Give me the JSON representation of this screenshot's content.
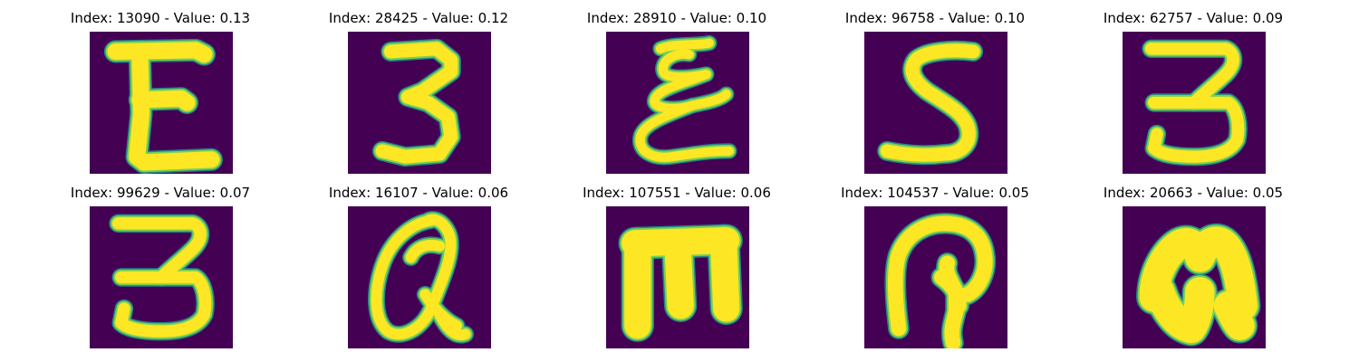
{
  "chart_data": {
    "type": "image-grid",
    "colormap": "viridis",
    "rows": 2,
    "cols": 5,
    "images": [
      {
        "title": "Index: 13090 - Value: 0.13",
        "index": 13090,
        "value": 0.13,
        "glyph": "E"
      },
      {
        "title": "Index: 28425 - Value: 0.12",
        "index": 28425,
        "value": 0.12,
        "glyph": "3"
      },
      {
        "title": "Index: 28910 - Value: 0.10",
        "index": 28910,
        "value": 0.1,
        "glyph": "E-cursive"
      },
      {
        "title": "Index: 96758 - Value: 0.10",
        "index": 96758,
        "value": 0.1,
        "glyph": "S"
      },
      {
        "title": "Index: 62757 - Value: 0.09",
        "index": 62757,
        "value": 0.09,
        "glyph": "3-flat"
      },
      {
        "title": "Index: 99629 - Value: 0.07",
        "index": 99629,
        "value": 0.07,
        "glyph": "3-flat"
      },
      {
        "title": "Index: 16107 - Value: 0.06",
        "index": 16107,
        "value": 0.06,
        "glyph": "Q"
      },
      {
        "title": "Index: 107551 - Value: 0.06",
        "index": 107551,
        "value": 0.06,
        "glyph": "E-rotated"
      },
      {
        "title": "Index: 104537 - Value: 0.05",
        "index": 104537,
        "value": 0.05,
        "glyph": "hook"
      },
      {
        "title": "Index: 20663 - Value: 0.05",
        "index": 20663,
        "value": 0.05,
        "glyph": "arch"
      }
    ]
  },
  "colors": {
    "background": "#440154",
    "stroke_outer": "#21918c",
    "stroke_mid": "#7ad151",
    "stroke_inner": "#fde725"
  }
}
